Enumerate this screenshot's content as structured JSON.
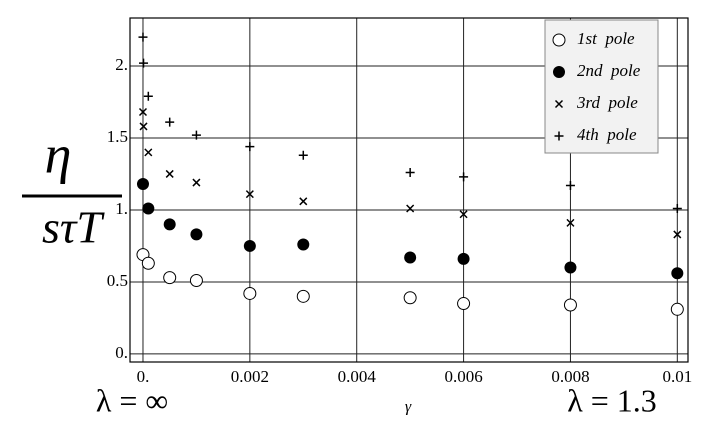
{
  "chart_data": {
    "type": "scatter",
    "ylabel_numerator": "η",
    "ylabel_denominator": "sτT",
    "xlabel": "γ",
    "annotations": [
      "λ = ∞",
      "λ = 1.3"
    ],
    "xlim": [
      -0.000243,
      0.0102
    ],
    "ylim": [
      -0.056,
      2.333
    ],
    "xticks": [
      {
        "value": 0,
        "label": "0."
      },
      0.002,
      0.004,
      0.006,
      0.008,
      0.01
    ],
    "yticks": [
      {
        "value": 0,
        "label": "0."
      },
      0.5,
      {
        "value": 1,
        "label": "1."
      },
      1.5,
      {
        "value": 2,
        "label": "2."
      }
    ],
    "grid": true,
    "legend": "upper right",
    "series": [
      {
        "name": "1st  pole",
        "color": "#000000",
        "marker": "open-circle",
        "x": [
          0,
          0.0001,
          0.0005,
          0.001,
          0.002,
          0.003,
          0.005,
          0.006,
          0.008,
          0.01
        ],
        "values": [
          0.69,
          0.63,
          0.53,
          0.51,
          0.42,
          0.4,
          0.39,
          0.35,
          0.34,
          0.31
        ]
      },
      {
        "name": "2nd  pole",
        "color": "#000000",
        "marker": "filled-circle",
        "x": [
          0,
          0.0001,
          0.0005,
          0.001,
          0.002,
          0.003,
          0.005,
          0.006,
          0.008,
          0.01
        ],
        "values": [
          1.18,
          1.01,
          0.9,
          0.83,
          0.75,
          0.76,
          0.67,
          0.66,
          0.6,
          0.56
        ]
      },
      {
        "name": "3rd  pole",
        "color": "#000000",
        "marker": "cross",
        "x": [
          0,
          1e-05,
          0.0001,
          0.0005,
          0.001,
          0.002,
          0.003,
          0.005,
          0.006,
          0.008,
          0.01
        ],
        "values": [
          1.68,
          1.58,
          1.4,
          1.25,
          1.19,
          1.11,
          1.06,
          1.01,
          0.97,
          0.91,
          0.83
        ]
      },
      {
        "name": "4th  pole",
        "color": "#000000",
        "marker": "plus",
        "x": [
          0,
          1e-05,
          0.0001,
          0.0005,
          0.001,
          0.002,
          0.003,
          0.005,
          0.006,
          0.008,
          0.01
        ],
        "values": [
          2.2,
          2.02,
          1.79,
          1.61,
          1.52,
          1.44,
          1.38,
          1.26,
          1.23,
          1.17,
          1.01
        ]
      }
    ]
  }
}
